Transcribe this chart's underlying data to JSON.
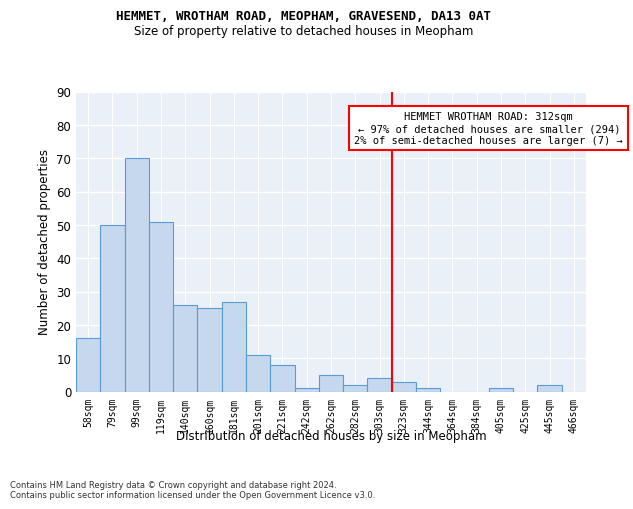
{
  "title1": "HEMMET, WROTHAM ROAD, MEOPHAM, GRAVESEND, DA13 0AT",
  "title2": "Size of property relative to detached houses in Meopham",
  "xlabel": "Distribution of detached houses by size in Meopham",
  "ylabel": "Number of detached properties",
  "categories": [
    "58sqm",
    "79sqm",
    "99sqm",
    "119sqm",
    "140sqm",
    "160sqm",
    "181sqm",
    "201sqm",
    "221sqm",
    "242sqm",
    "262sqm",
    "282sqm",
    "303sqm",
    "323sqm",
    "344sqm",
    "364sqm",
    "384sqm",
    "405sqm",
    "425sqm",
    "445sqm",
    "466sqm"
  ],
  "values": [
    16,
    50,
    70,
    51,
    26,
    25,
    27,
    11,
    8,
    1,
    5,
    2,
    4,
    3,
    1,
    0,
    0,
    1,
    0,
    2,
    0
  ],
  "bar_color": "#c5d8ed",
  "bar_edge_color": "#5b9bd5",
  "reference_line_x": 12.5,
  "reference_line_label": "HEMMET WROTHAM ROAD: 312sqm",
  "annotation_line1": "← 97% of detached houses are smaller (294)",
  "annotation_line2": "2% of semi-detached houses are larger (7) →",
  "vline_color": "red",
  "background_color": "#eaf0f8",
  "grid_color": "#ffffff",
  "ylim": [
    0,
    90
  ],
  "yticks": [
    0,
    10,
    20,
    30,
    40,
    50,
    60,
    70,
    80,
    90
  ],
  "footer_line1": "Contains HM Land Registry data © Crown copyright and database right 2024.",
  "footer_line2": "Contains public sector information licensed under the Open Government Licence v3.0."
}
